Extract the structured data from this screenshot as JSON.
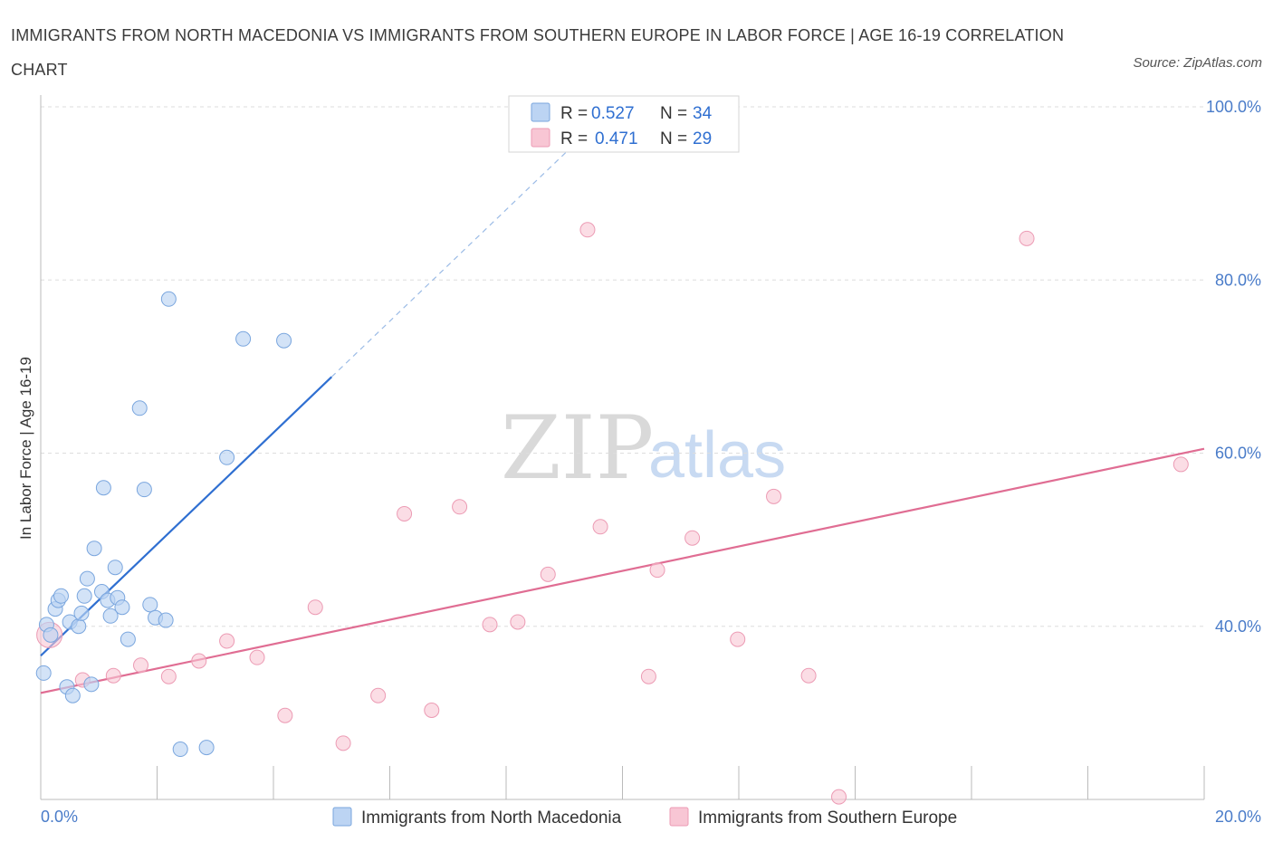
{
  "title": "IMMIGRANTS FROM NORTH MACEDONIA VS IMMIGRANTS FROM SOUTHERN EUROPE IN LABOR FORCE | AGE 16-19 CORRELATION CHART",
  "source": "Source: ZipAtlas.com",
  "watermark": {
    "zip": "ZIP",
    "atlas": "atlas"
  },
  "legend": {
    "series1": {
      "r_label": "R =",
      "r_value": "0.527",
      "n_label": "N =",
      "n_value": "34"
    },
    "series2": {
      "r_label": "R =",
      "r_value": "0.471",
      "n_label": "N =",
      "n_value": "29"
    }
  },
  "colors": {
    "blue_fill": "#bcd4f3",
    "blue_stroke": "#7aa6de",
    "blue_line": "#2f6fd1",
    "pink_fill": "#f8c6d4",
    "pink_stroke": "#ec9bb4",
    "pink_line": "#e06d93",
    "grid": "#dddddd",
    "tick_text": "#4a7cc9"
  },
  "chart_data": {
    "type": "scatter",
    "title": "IMMIGRANTS FROM NORTH MACEDONIA VS IMMIGRANTS FROM SOUTHERN EUROPE IN LABOR FORCE | AGE 16-19 CORRELATION CHART",
    "xlabel": "",
    "ylabel": "In Labor Force | Age 16-19",
    "xlim": [
      0,
      20
    ],
    "ylim": [
      20,
      100
    ],
    "x_tick_labels": [
      {
        "value": 0,
        "label": "0.0%"
      },
      {
        "value": 20,
        "label": "20.0%"
      }
    ],
    "y_tick_labels": [
      {
        "value": 40,
        "label": "40.0%"
      },
      {
        "value": 60,
        "label": "60.0%"
      },
      {
        "value": 80,
        "label": "80.0%"
      },
      {
        "value": 100,
        "label": "100.0%"
      }
    ],
    "series": [
      {
        "name": "Immigrants from North Macedonia",
        "color": "blue",
        "points": [
          [
            0.05,
            34.6
          ],
          [
            0.1,
            40.2
          ],
          [
            0.17,
            39.0
          ],
          [
            0.25,
            42.0
          ],
          [
            0.3,
            43.0
          ],
          [
            0.35,
            43.5
          ],
          [
            0.45,
            33.0
          ],
          [
            0.5,
            40.5
          ],
          [
            0.55,
            32.0
          ],
          [
            0.65,
            40.0
          ],
          [
            0.7,
            41.5
          ],
          [
            0.75,
            43.5
          ],
          [
            0.8,
            45.5
          ],
          [
            0.87,
            33.3
          ],
          [
            0.92,
            49.0
          ],
          [
            1.05,
            44.0
          ],
          [
            1.08,
            56.0
          ],
          [
            1.15,
            43.0
          ],
          [
            1.2,
            41.2
          ],
          [
            1.28,
            46.8
          ],
          [
            1.32,
            43.3
          ],
          [
            1.4,
            42.2
          ],
          [
            1.5,
            38.5
          ],
          [
            1.7,
            65.2
          ],
          [
            1.78,
            55.8
          ],
          [
            1.88,
            42.5
          ],
          [
            1.97,
            41.0
          ],
          [
            2.15,
            40.7
          ],
          [
            2.2,
            77.8
          ],
          [
            2.4,
            25.8
          ],
          [
            2.85,
            26.0
          ],
          [
            3.2,
            59.5
          ],
          [
            3.48,
            73.2
          ],
          [
            4.18,
            73.0
          ]
        ],
        "trend_line": {
          "x_start": 0,
          "y_start": 36.6,
          "x_end": 5.0,
          "y_end": 68.8,
          "extrapolated_to_x": 9.5
        }
      },
      {
        "name": "Immigrants from Southern Europe",
        "color": "pink",
        "points": [
          [
            0.15,
            39.0
          ],
          [
            0.72,
            33.8
          ],
          [
            1.25,
            34.3
          ],
          [
            1.72,
            35.5
          ],
          [
            2.2,
            34.2
          ],
          [
            2.72,
            36.0
          ],
          [
            3.2,
            38.3
          ],
          [
            3.72,
            36.4
          ],
          [
            4.2,
            29.7
          ],
          [
            4.72,
            42.2
          ],
          [
            5.2,
            26.5
          ],
          [
            5.8,
            32.0
          ],
          [
            6.25,
            53.0
          ],
          [
            6.72,
            30.3
          ],
          [
            7.2,
            53.8
          ],
          [
            7.72,
            40.2
          ],
          [
            8.2,
            40.5
          ],
          [
            8.72,
            46.0
          ],
          [
            9.4,
            85.8
          ],
          [
            9.62,
            51.5
          ],
          [
            10.45,
            34.2
          ],
          [
            10.6,
            46.5
          ],
          [
            11.2,
            50.2
          ],
          [
            11.98,
            38.5
          ],
          [
            12.6,
            55.0
          ],
          [
            13.2,
            34.3
          ],
          [
            13.72,
            20.3
          ],
          [
            16.95,
            84.8
          ],
          [
            19.6,
            58.7
          ]
        ],
        "trend_line": {
          "x_start": 0,
          "y_start": 32.3,
          "x_end": 20,
          "y_end": 60.5
        }
      }
    ],
    "legend_placement": "top-center",
    "grid": true
  },
  "bottom_legend": {
    "series1_label": "Immigrants from North Macedonia",
    "series2_label": "Immigrants from Southern Europe"
  }
}
